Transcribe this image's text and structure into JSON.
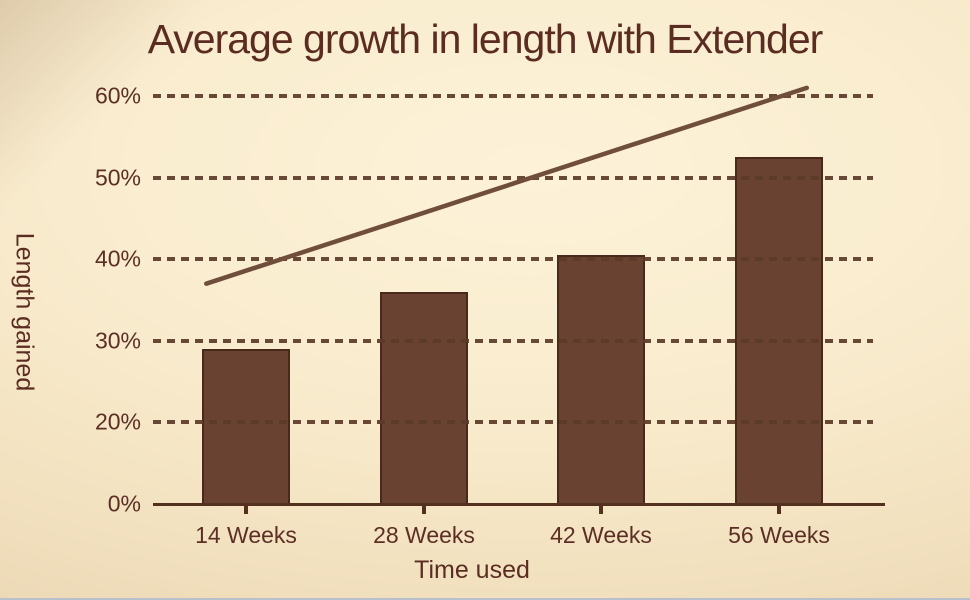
{
  "colors": {
    "background_center": "#fdf2d8",
    "background_edge": "#e2caa4",
    "text": "#5b2d22",
    "bar_fill": "#6a4231",
    "bar_border": "#48291c",
    "gridline": "#5b3a28",
    "axis": "#54301f",
    "trend_line": "#6f4e3c",
    "bottom_edge_strip": "#b7c0cb"
  },
  "chart_data": {
    "type": "bar",
    "title": "Average growth in length with Extender",
    "xlabel": "Time used",
    "ylabel": "Length gained",
    "categories": [
      "14 Weeks",
      "28 Weeks",
      "42 Weeks",
      "56 Weeks"
    ],
    "values": [
      29,
      36,
      40.5,
      52.5
    ],
    "unit": "%",
    "y_ticks": [
      {
        "value": 0,
        "label": "0%"
      },
      {
        "value": 20,
        "label": "20%"
      },
      {
        "value": 30,
        "label": "30%"
      },
      {
        "value": 40,
        "label": "40%"
      },
      {
        "value": 50,
        "label": "50%"
      },
      {
        "value": 60,
        "label": "60%"
      }
    ],
    "axis_note": "y-axis ticks are evenly spaced but skip 10% (non-linear scale); 0% sits one step below 20%",
    "grid": "horizontal dashed lines at 20-60%, drawn over bars; no gridline at 0% (solid axis line)",
    "legend": "none",
    "trend_line": {
      "description": "straight rising accent line above bars",
      "start": {
        "x_frac": 0.074,
        "value": 37
      },
      "end": {
        "x_frac": 0.908,
        "value": 61
      }
    }
  }
}
